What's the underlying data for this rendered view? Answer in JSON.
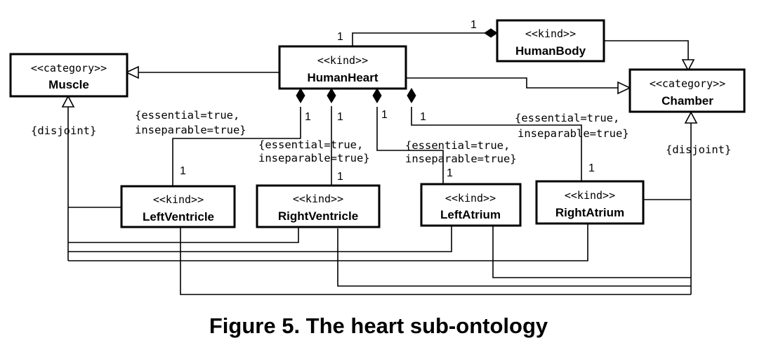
{
  "classes": {
    "muscle": {
      "stereotype": "<<category>>",
      "name": "Muscle"
    },
    "human_heart": {
      "stereotype": "<<kind>>",
      "name": "HumanHeart"
    },
    "human_body": {
      "stereotype": "<<kind>>",
      "name": "HumanBody"
    },
    "chamber": {
      "stereotype": "<<category>>",
      "name": "Chamber"
    },
    "left_ventricle": {
      "stereotype": "<<kind>>",
      "name": "LeftVentricle"
    },
    "right_ventricle": {
      "stereotype": "<<kind>>",
      "name": "RightVentricle"
    },
    "left_atrium": {
      "stereotype": "<<kind>>",
      "name": "LeftAtrium"
    },
    "right_atrium": {
      "stereotype": "<<kind>>",
      "name": "RightAtrium"
    }
  },
  "multiplicities": {
    "heart_body_heart": "1",
    "heart_body_body": "1",
    "lv_whole": "1",
    "lv_part": "1",
    "rv_whole": "1",
    "rv_part": "1",
    "la_whole": "1",
    "la_part": "1",
    "ra_whole": "1",
    "ra_part": "1"
  },
  "constraints": {
    "lv": [
      "{essential=true,",
      "inseparable=true}"
    ],
    "rv": [
      "{essential=true,",
      "inseparable=true}"
    ],
    "la": [
      "{essential=true,",
      "inseparable=true}"
    ],
    "ra": [
      "{essential=true,",
      "inseparable=true}"
    ],
    "disjoint_muscle": "{disjoint}",
    "disjoint_chamber": "{disjoint}"
  },
  "caption": "Figure 5. The heart sub-ontology"
}
